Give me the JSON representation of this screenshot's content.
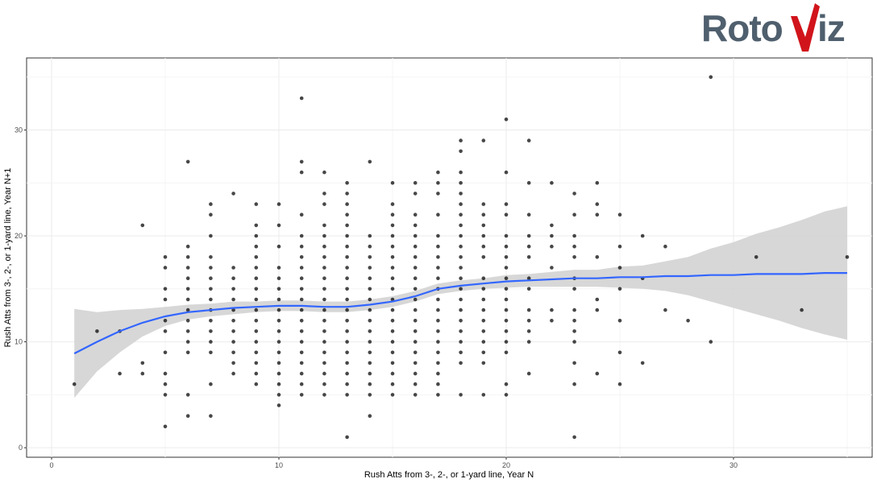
{
  "logo": {
    "text_left": "Roto",
    "text_right": "iz",
    "mark_color": "#d1141b",
    "text_color": "#4f5f6d"
  },
  "chart_data": {
    "type": "scatter",
    "xlabel": "Rush Atts from 3-, 2-, or 1-yard line, Year N",
    "ylabel": "Rush Atts from 3-, 2-, or 1-yard line, Year N+1",
    "xlim": [
      -1.1,
      36.1
    ],
    "ylim": [
      -0.9,
      36.8
    ],
    "xticks": [
      0,
      10,
      20,
      30
    ],
    "yticks": [
      0,
      10,
      20,
      30
    ],
    "grid": true,
    "point_color": "#000000",
    "smooth_color": "#3366ff",
    "ribbon_color": "#d3d3d3",
    "points": [
      [
        1,
        6
      ],
      [
        2,
        11
      ],
      [
        3,
        11
      ],
      [
        3,
        7
      ],
      [
        4,
        21
      ],
      [
        4,
        8
      ],
      [
        4,
        7
      ],
      [
        5,
        18
      ],
      [
        5,
        17
      ],
      [
        5,
        15
      ],
      [
        5,
        14
      ],
      [
        5,
        12
      ],
      [
        5,
        11
      ],
      [
        5,
        9
      ],
      [
        5,
        7
      ],
      [
        5,
        6
      ],
      [
        5,
        5
      ],
      [
        5,
        2
      ],
      [
        6,
        27
      ],
      [
        6,
        19
      ],
      [
        6,
        18
      ],
      [
        6,
        17
      ],
      [
        6,
        16
      ],
      [
        6,
        15
      ],
      [
        6,
        14
      ],
      [
        6,
        13
      ],
      [
        6,
        12
      ],
      [
        6,
        11
      ],
      [
        6,
        10
      ],
      [
        6,
        9
      ],
      [
        6,
        5
      ],
      [
        6,
        3
      ],
      [
        7,
        23
      ],
      [
        7,
        22
      ],
      [
        7,
        20
      ],
      [
        7,
        18
      ],
      [
        7,
        17
      ],
      [
        7,
        16
      ],
      [
        7,
        15
      ],
      [
        7,
        14
      ],
      [
        7,
        13
      ],
      [
        7,
        12
      ],
      [
        7,
        11
      ],
      [
        7,
        10
      ],
      [
        7,
        9
      ],
      [
        7,
        6
      ],
      [
        7,
        3
      ],
      [
        8,
        24
      ],
      [
        8,
        17
      ],
      [
        8,
        16
      ],
      [
        8,
        15
      ],
      [
        8,
        14
      ],
      [
        8,
        13
      ],
      [
        8,
        12
      ],
      [
        8,
        11
      ],
      [
        8,
        10
      ],
      [
        8,
        9
      ],
      [
        8,
        8
      ],
      [
        8,
        7
      ],
      [
        9,
        23
      ],
      [
        9,
        21
      ],
      [
        9,
        20
      ],
      [
        9,
        19
      ],
      [
        9,
        18
      ],
      [
        9,
        17
      ],
      [
        9,
        16
      ],
      [
        9,
        15
      ],
      [
        9,
        14
      ],
      [
        9,
        13
      ],
      [
        9,
        12
      ],
      [
        9,
        11
      ],
      [
        9,
        10
      ],
      [
        9,
        9
      ],
      [
        9,
        8
      ],
      [
        9,
        7
      ],
      [
        9,
        6
      ],
      [
        10,
        23
      ],
      [
        10,
        21
      ],
      [
        10,
        19
      ],
      [
        10,
        17
      ],
      [
        10,
        16
      ],
      [
        10,
        15
      ],
      [
        10,
        14
      ],
      [
        10,
        13
      ],
      [
        10,
        12
      ],
      [
        10,
        11
      ],
      [
        10,
        10
      ],
      [
        10,
        9
      ],
      [
        10,
        8
      ],
      [
        10,
        7
      ],
      [
        10,
        6
      ],
      [
        10,
        5
      ],
      [
        10,
        4
      ],
      [
        11,
        33
      ],
      [
        11,
        27
      ],
      [
        11,
        26
      ],
      [
        11,
        22
      ],
      [
        11,
        20
      ],
      [
        11,
        19
      ],
      [
        11,
        18
      ],
      [
        11,
        17
      ],
      [
        11,
        16
      ],
      [
        11,
        15
      ],
      [
        11,
        14
      ],
      [
        11,
        13
      ],
      [
        11,
        12
      ],
      [
        11,
        11
      ],
      [
        11,
        10
      ],
      [
        11,
        9
      ],
      [
        11,
        8
      ],
      [
        11,
        7
      ],
      [
        11,
        6
      ],
      [
        11,
        5
      ],
      [
        12,
        26
      ],
      [
        12,
        24
      ],
      [
        12,
        23
      ],
      [
        12,
        21
      ],
      [
        12,
        20
      ],
      [
        12,
        19
      ],
      [
        12,
        18
      ],
      [
        12,
        17
      ],
      [
        12,
        16
      ],
      [
        12,
        15
      ],
      [
        12,
        14
      ],
      [
        12,
        13
      ],
      [
        12,
        12
      ],
      [
        12,
        11
      ],
      [
        12,
        10
      ],
      [
        12,
        9
      ],
      [
        12,
        8
      ],
      [
        12,
        7
      ],
      [
        12,
        6
      ],
      [
        12,
        5
      ],
      [
        13,
        25
      ],
      [
        13,
        24
      ],
      [
        13,
        23
      ],
      [
        13,
        22
      ],
      [
        13,
        21
      ],
      [
        13,
        20
      ],
      [
        13,
        19
      ],
      [
        13,
        18
      ],
      [
        13,
        17
      ],
      [
        13,
        16
      ],
      [
        13,
        15
      ],
      [
        13,
        14
      ],
      [
        13,
        13
      ],
      [
        13,
        12
      ],
      [
        13,
        11
      ],
      [
        13,
        10
      ],
      [
        13,
        9
      ],
      [
        13,
        8
      ],
      [
        13,
        7
      ],
      [
        13,
        6
      ],
      [
        13,
        5
      ],
      [
        13,
        1
      ],
      [
        14,
        27
      ],
      [
        14,
        20
      ],
      [
        14,
        19
      ],
      [
        14,
        18
      ],
      [
        14,
        17
      ],
      [
        14,
        16
      ],
      [
        14,
        15
      ],
      [
        14,
        14
      ],
      [
        14,
        13
      ],
      [
        14,
        12
      ],
      [
        14,
        11
      ],
      [
        14,
        10
      ],
      [
        14,
        9
      ],
      [
        14,
        8
      ],
      [
        14,
        7
      ],
      [
        14,
        6
      ],
      [
        14,
        5
      ],
      [
        14,
        3
      ],
      [
        15,
        25
      ],
      [
        15,
        23
      ],
      [
        15,
        22
      ],
      [
        15,
        21
      ],
      [
        15,
        20
      ],
      [
        15,
        19
      ],
      [
        15,
        18
      ],
      [
        15,
        17
      ],
      [
        15,
        16
      ],
      [
        15,
        15
      ],
      [
        15,
        14
      ],
      [
        15,
        13
      ],
      [
        15,
        12
      ],
      [
        15,
        11
      ],
      [
        15,
        10
      ],
      [
        15,
        9
      ],
      [
        15,
        8
      ],
      [
        15,
        7
      ],
      [
        15,
        6
      ],
      [
        15,
        5
      ],
      [
        16,
        25
      ],
      [
        16,
        24
      ],
      [
        16,
        22
      ],
      [
        16,
        21
      ],
      [
        16,
        20
      ],
      [
        16,
        19
      ],
      [
        16,
        18
      ],
      [
        16,
        17
      ],
      [
        16,
        16
      ],
      [
        16,
        15
      ],
      [
        16,
        14
      ],
      [
        16,
        13
      ],
      [
        16,
        12
      ],
      [
        16,
        11
      ],
      [
        16,
        10
      ],
      [
        16,
        9
      ],
      [
        16,
        8
      ],
      [
        16,
        7
      ],
      [
        16,
        6
      ],
      [
        16,
        5
      ],
      [
        17,
        26
      ],
      [
        17,
        25
      ],
      [
        17,
        24
      ],
      [
        17,
        22
      ],
      [
        17,
        20
      ],
      [
        17,
        19
      ],
      [
        17,
        18
      ],
      [
        17,
        17
      ],
      [
        17,
        16
      ],
      [
        17,
        15
      ],
      [
        17,
        14
      ],
      [
        17,
        13
      ],
      [
        17,
        12
      ],
      [
        17,
        11
      ],
      [
        17,
        10
      ],
      [
        17,
        9
      ],
      [
        17,
        8
      ],
      [
        17,
        7
      ],
      [
        17,
        6
      ],
      [
        17,
        5
      ],
      [
        18,
        29
      ],
      [
        18,
        28
      ],
      [
        18,
        26
      ],
      [
        18,
        25
      ],
      [
        18,
        24
      ],
      [
        18,
        23
      ],
      [
        18,
        22
      ],
      [
        18,
        21
      ],
      [
        18,
        20
      ],
      [
        18,
        19
      ],
      [
        18,
        18
      ],
      [
        18,
        17
      ],
      [
        18,
        16
      ],
      [
        18,
        15
      ],
      [
        18,
        14
      ],
      [
        18,
        13
      ],
      [
        18,
        12
      ],
      [
        18,
        11
      ],
      [
        18,
        10
      ],
      [
        18,
        9
      ],
      [
        18,
        8
      ],
      [
        18,
        5
      ],
      [
        19,
        29
      ],
      [
        19,
        23
      ],
      [
        19,
        22
      ],
      [
        19,
        21
      ],
      [
        19,
        20
      ],
      [
        19,
        19
      ],
      [
        19,
        18
      ],
      [
        19,
        16
      ],
      [
        19,
        15
      ],
      [
        19,
        14
      ],
      [
        19,
        13
      ],
      [
        19,
        12
      ],
      [
        19,
        11
      ],
      [
        19,
        10
      ],
      [
        19,
        9
      ],
      [
        19,
        8
      ],
      [
        19,
        5
      ],
      [
        20,
        31
      ],
      [
        20,
        26
      ],
      [
        20,
        23
      ],
      [
        20,
        22
      ],
      [
        20,
        20
      ],
      [
        20,
        19
      ],
      [
        20,
        18
      ],
      [
        20,
        17
      ],
      [
        20,
        16
      ],
      [
        20,
        15
      ],
      [
        20,
        14
      ],
      [
        20,
        13
      ],
      [
        20,
        12
      ],
      [
        20,
        11
      ],
      [
        20,
        10
      ],
      [
        20,
        9
      ],
      [
        20,
        6
      ],
      [
        20,
        5
      ],
      [
        21,
        29
      ],
      [
        21,
        25
      ],
      [
        21,
        22
      ],
      [
        21,
        20
      ],
      [
        21,
        19
      ],
      [
        21,
        18
      ],
      [
        21,
        16
      ],
      [
        21,
        15
      ],
      [
        21,
        13
      ],
      [
        21,
        12
      ],
      [
        21,
        11
      ],
      [
        21,
        10
      ],
      [
        21,
        7
      ],
      [
        22,
        25
      ],
      [
        22,
        21
      ],
      [
        22,
        20
      ],
      [
        22,
        19
      ],
      [
        22,
        17
      ],
      [
        22,
        13
      ],
      [
        22,
        12
      ],
      [
        23,
        24
      ],
      [
        23,
        22
      ],
      [
        23,
        20
      ],
      [
        23,
        19
      ],
      [
        23,
        18
      ],
      [
        23,
        16
      ],
      [
        23,
        15
      ],
      [
        23,
        13
      ],
      [
        23,
        12
      ],
      [
        23,
        11
      ],
      [
        23,
        10
      ],
      [
        23,
        8
      ],
      [
        23,
        6
      ],
      [
        23,
        1
      ],
      [
        24,
        25
      ],
      [
        24,
        23
      ],
      [
        24,
        22
      ],
      [
        24,
        18
      ],
      [
        24,
        14
      ],
      [
        24,
        13
      ],
      [
        24,
        7
      ],
      [
        25,
        22
      ],
      [
        25,
        19
      ],
      [
        25,
        17
      ],
      [
        25,
        15
      ],
      [
        25,
        12
      ],
      [
        25,
        9
      ],
      [
        25,
        6
      ],
      [
        26,
        20
      ],
      [
        26,
        16
      ],
      [
        26,
        8
      ],
      [
        27,
        19
      ],
      [
        27,
        13
      ],
      [
        28,
        12
      ],
      [
        29,
        35
      ],
      [
        29,
        10
      ],
      [
        31,
        18
      ],
      [
        33,
        13
      ],
      [
        35,
        18
      ]
    ],
    "smooth": {
      "x": [
        1,
        2,
        3,
        4,
        5,
        6,
        7,
        8,
        9,
        10,
        11,
        12,
        13,
        14,
        15,
        16,
        17,
        18,
        19,
        20,
        21,
        22,
        23,
        24,
        25,
        26,
        27,
        28,
        29,
        30,
        31,
        32,
        33,
        34,
        35
      ],
      "y": [
        8.9,
        10.0,
        11.0,
        11.8,
        12.4,
        12.8,
        13.0,
        13.2,
        13.3,
        13.4,
        13.4,
        13.3,
        13.3,
        13.5,
        13.8,
        14.3,
        15.0,
        15.3,
        15.5,
        15.7,
        15.8,
        15.9,
        16.0,
        16.0,
        16.1,
        16.1,
        16.2,
        16.2,
        16.3,
        16.3,
        16.4,
        16.4,
        16.4,
        16.5,
        16.5
      ],
      "lo": [
        4.7,
        7.2,
        9.0,
        10.5,
        11.5,
        12.1,
        12.4,
        12.6,
        12.8,
        12.9,
        12.9,
        12.8,
        12.8,
        13.0,
        13.3,
        13.8,
        14.5,
        14.8,
        15.0,
        15.1,
        15.2,
        15.2,
        15.2,
        15.2,
        15.1,
        15.0,
        14.8,
        14.4,
        13.8,
        13.2,
        12.6,
        12.0,
        11.3,
        10.7,
        10.2
      ],
      "hi": [
        13.1,
        12.8,
        13.0,
        13.1,
        13.3,
        13.5,
        13.6,
        13.8,
        13.8,
        13.9,
        13.9,
        13.8,
        13.8,
        14.0,
        14.3,
        14.8,
        15.5,
        15.8,
        16.0,
        16.3,
        16.4,
        16.6,
        16.8,
        16.8,
        17.1,
        17.2,
        17.6,
        18.0,
        18.8,
        19.4,
        20.2,
        20.8,
        21.5,
        22.3,
        22.8
      ]
    }
  }
}
